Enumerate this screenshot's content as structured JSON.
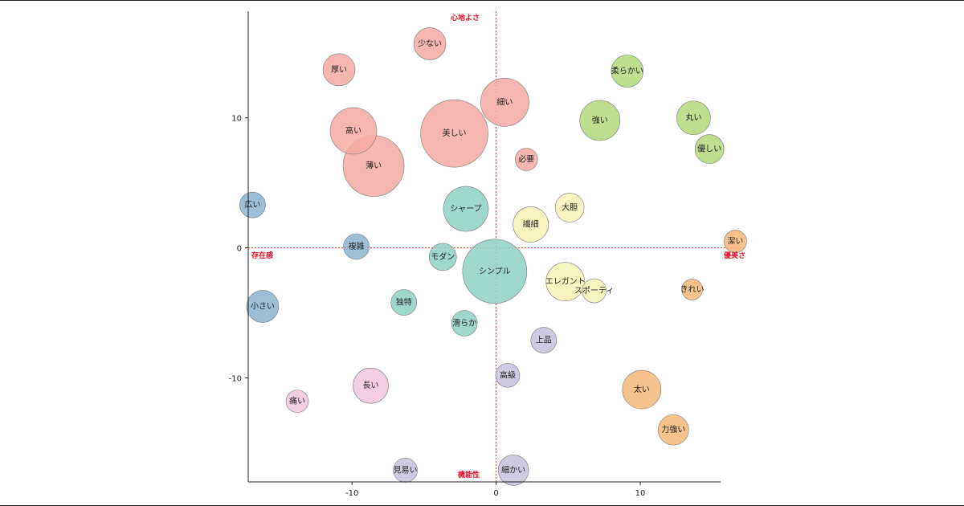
{
  "chart_data": {
    "type": "scatter",
    "title": "",
    "axis_names": {
      "top": "心地よさ",
      "bottom": "機能性",
      "left": "存在感",
      "right": "優美さ"
    },
    "xlim": [
      -17.2,
      17.3
    ],
    "ylim": [
      -18.0,
      18.2
    ],
    "xticks": [
      -10,
      0,
      10
    ],
    "yticks": [
      -10,
      0,
      10
    ],
    "reference_lines": {
      "x": 0,
      "y": 0,
      "color": "#ff2a2a",
      "style": "dotted"
    },
    "grid": false,
    "points": [
      {
        "label": "少ない",
        "x": -4.6,
        "y": 15.7,
        "size": 2.0,
        "color": "#f4aaa4"
      },
      {
        "label": "厚い",
        "x": -10.9,
        "y": 13.7,
        "size": 2.0,
        "color": "#f4aaa4"
      },
      {
        "label": "細い",
        "x": 0.6,
        "y": 11.2,
        "size": 3.0,
        "color": "#f4aaa4"
      },
      {
        "label": "高い",
        "x": -9.9,
        "y": 9.0,
        "size": 2.9,
        "color": "#f4aaa4"
      },
      {
        "label": "美しい",
        "x": -2.9,
        "y": 8.8,
        "size": 4.2,
        "color": "#f4aaa4"
      },
      {
        "label": "薄い",
        "x": -8.5,
        "y": 6.3,
        "size": 3.8,
        "color": "#f4aaa4"
      },
      {
        "label": "必要",
        "x": 2.1,
        "y": 6.8,
        "size": 1.4,
        "color": "#f4aaa4"
      },
      {
        "label": "柔らかい",
        "x": 9.1,
        "y": 13.6,
        "size": 2.0,
        "color": "#b3d87c"
      },
      {
        "label": "強い",
        "x": 7.2,
        "y": 9.8,
        "size": 2.5,
        "color": "#b3d87c"
      },
      {
        "label": "丸い",
        "x": 13.7,
        "y": 10.0,
        "size": 2.1,
        "color": "#b3d87c"
      },
      {
        "label": "優しい",
        "x": 14.8,
        "y": 7.6,
        "size": 1.8,
        "color": "#b3d87c"
      },
      {
        "label": "シャープ",
        "x": -2.1,
        "y": 3.0,
        "size": 2.8,
        "color": "#8fd0c3"
      },
      {
        "label": "モダン",
        "x": -3.7,
        "y": -0.7,
        "size": 1.7,
        "color": "#8fd0c3"
      },
      {
        "label": "シンプル",
        "x": -0.1,
        "y": -1.8,
        "size": 4.0,
        "color": "#8fd0c3"
      },
      {
        "label": "独特",
        "x": -6.4,
        "y": -4.2,
        "size": 1.6,
        "color": "#8fd0c3"
      },
      {
        "label": "滑らか",
        "x": -2.2,
        "y": -5.8,
        "size": 1.6,
        "color": "#8fd0c3"
      },
      {
        "label": "広い",
        "x": -16.9,
        "y": 3.3,
        "size": 1.6,
        "color": "#8bb4d0"
      },
      {
        "label": "複雑",
        "x": -9.7,
        "y": 0.1,
        "size": 1.6,
        "color": "#8bb4d0"
      },
      {
        "label": "小さい",
        "x": -16.2,
        "y": -4.5,
        "size": 2.0,
        "color": "#8bb4d0"
      },
      {
        "label": "大胆",
        "x": 5.1,
        "y": 3.1,
        "size": 1.8,
        "color": "#f8f3b8"
      },
      {
        "label": "繊細",
        "x": 2.4,
        "y": 1.8,
        "size": 2.2,
        "color": "#f8f3b8"
      },
      {
        "label": "エレガント",
        "x": 4.8,
        "y": -2.6,
        "size": 2.4,
        "color": "#f8f3b8"
      },
      {
        "label": "スポーティ",
        "x": 6.8,
        "y": -3.3,
        "size": 1.5,
        "color": "#f8f3b8"
      },
      {
        "label": "潔い",
        "x": 16.6,
        "y": 0.5,
        "size": 1.4,
        "color": "#f5b87a"
      },
      {
        "label": "きれい",
        "x": 13.6,
        "y": -3.2,
        "size": 1.3,
        "color": "#f5b87a"
      },
      {
        "label": "太い",
        "x": 10.1,
        "y": -10.9,
        "size": 2.4,
        "color": "#f5b87a"
      },
      {
        "label": "力強い",
        "x": 12.3,
        "y": -14.0,
        "size": 1.9,
        "color": "#f5b87a"
      },
      {
        "label": "上品",
        "x": 3.3,
        "y": -7.1,
        "size": 1.6,
        "color": "#c7c1dd"
      },
      {
        "label": "高級",
        "x": 0.8,
        "y": -9.8,
        "size": 1.5,
        "color": "#c7c1dd"
      },
      {
        "label": "細かい",
        "x": 1.2,
        "y": -17.1,
        "size": 1.9,
        "color": "#c7c1dd"
      },
      {
        "label": "見易い",
        "x": -6.3,
        "y": -17.1,
        "size": 1.5,
        "color": "#c7c1dd"
      },
      {
        "label": "長い",
        "x": -8.7,
        "y": -10.6,
        "size": 2.2,
        "color": "#f2c5dd"
      },
      {
        "label": "痛い",
        "x": -13.8,
        "y": -11.8,
        "size": 1.4,
        "color": "#f2c5dd"
      }
    ]
  }
}
